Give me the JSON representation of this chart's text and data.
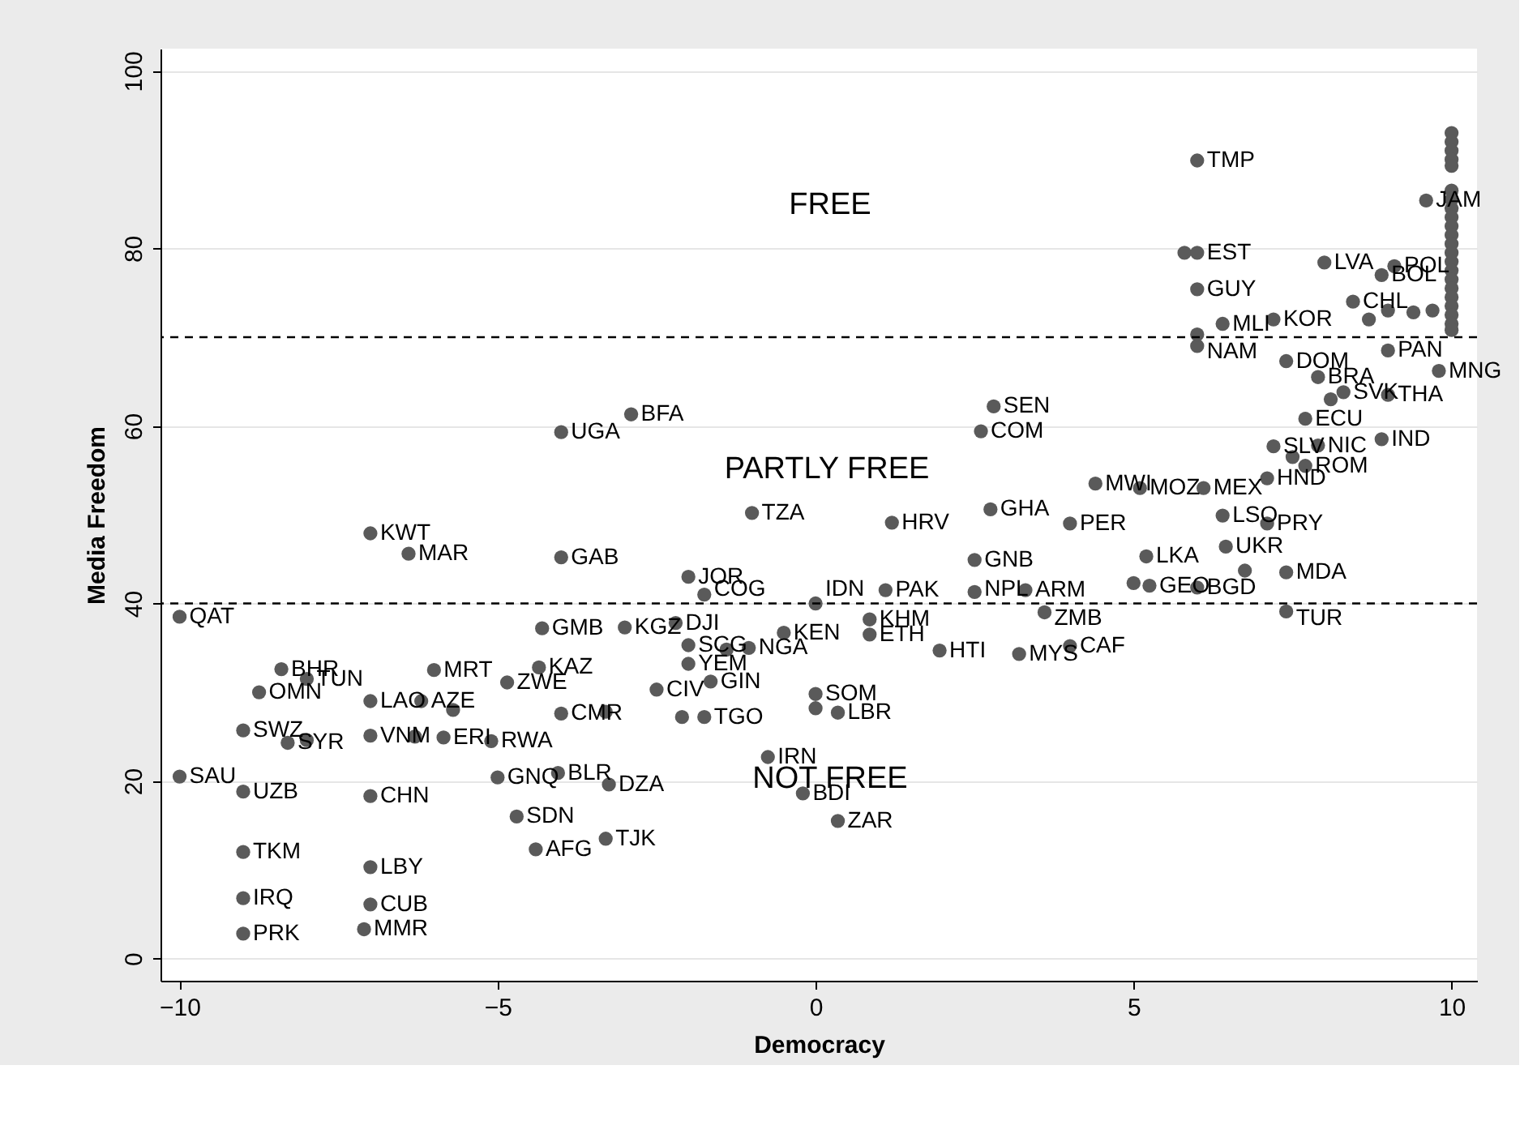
{
  "chart_data": {
    "type": "scatter",
    "xlabel": "Democracy",
    "ylabel": "Media Freedom",
    "xlim": [
      -10.3,
      10.4
    ],
    "ylim": [
      -2.5,
      102.5
    ],
    "xticks": [
      -10,
      -5,
      0,
      5,
      10
    ],
    "yticks": [
      0,
      20,
      40,
      60,
      80,
      100
    ],
    "grid": "y",
    "marker": "circle",
    "series": [
      {
        "color": "#5a5a5a",
        "x": [
          -10,
          -10,
          -7,
          -6.4,
          -4,
          -4,
          -2.9,
          -1,
          1.2,
          2.75,
          2.8,
          2.6,
          4,
          2.5,
          -2,
          -1.75,
          -2.2,
          -3,
          -4.3,
          -2,
          -2,
          -1.05,
          -1.4,
          -0.5,
          -1.65,
          -2.5,
          0,
          1.1,
          0.85,
          0.85,
          1.95,
          3.2,
          2.5,
          3.3,
          3.6,
          4,
          0,
          0,
          0.35,
          -0.75,
          -0.2,
          0.35,
          -3.3,
          -4.4,
          -3.25,
          -4.05,
          -5,
          -4,
          -3.3,
          -1.75,
          -2.1,
          -4.7,
          -7,
          -7,
          -7,
          -7.1,
          -9,
          -9,
          -9,
          -9,
          -9,
          -8.3,
          -8,
          -7,
          -6.3,
          -5.85,
          -5.7,
          -6.2,
          -5.1,
          -7,
          -6,
          -4.35,
          -4.85,
          -8.4,
          -8.75,
          -8,
          6,
          5.8,
          6,
          6,
          8,
          9.6,
          7.2,
          6.4,
          6,
          6,
          9,
          9.8,
          7.4,
          7.9,
          8.3,
          8.1,
          9,
          7.7,
          8.9,
          7.2,
          7.9,
          7.7,
          7.5,
          4.4,
          7.1,
          5.1,
          6.1,
          6.4,
          7.1,
          6.45,
          5.2,
          5,
          5.25,
          6,
          6.75,
          7.4,
          7.4,
          8.9,
          9.1,
          8.45,
          8.7,
          9,
          9.4,
          9.7,
          10,
          10,
          10,
          10,
          10,
          10,
          10,
          10,
          10,
          10,
          10,
          10,
          10,
          10,
          10,
          10,
          10,
          10,
          10,
          10,
          10,
          10
        ],
        "values": [
          38.5,
          20.5,
          47.9,
          45.6,
          45.2,
          59.3,
          61.3,
          50.2,
          49.1,
          50.6,
          62.2,
          59.4,
          49,
          44.9,
          43,
          41.0,
          37.8,
          37.3,
          37.2,
          35.3,
          33.2,
          35,
          34.8,
          36.7,
          31.2,
          30.3,
          40,
          41.5,
          38.2,
          36.5,
          34.7,
          34.3,
          41.3,
          41.5,
          39,
          35.2,
          29.8,
          28.2,
          27.7,
          22.7,
          18.6,
          15.5,
          13.5,
          12.3,
          19.6,
          20.9,
          20.4,
          27.6,
          27.8,
          27.2,
          27.2,
          16,
          18.3,
          10.3,
          6.1,
          3.3,
          6.8,
          2.8,
          12,
          18.8,
          25.7,
          24.3,
          24.6,
          25.1,
          25,
          24.9,
          28,
          29.0,
          24.5,
          29,
          32.5,
          32.8,
          31.1,
          32.6,
          30,
          31.5,
          89.9,
          79.5,
          79.5,
          75.4,
          78.4,
          85.4,
          72,
          71.5,
          69,
          70.3,
          68.5,
          66.2,
          67.3,
          65.5,
          63.8,
          63,
          63.5,
          60.8,
          58.5,
          57.7,
          57.8,
          55.5,
          56.5,
          53.5,
          54.1,
          53,
          53,
          49.9,
          49,
          46.4,
          45.3,
          42.3,
          42,
          41.8,
          43.7,
          43.5,
          39.1,
          77,
          78,
          74,
          72,
          73,
          72.8,
          73,
          93,
          92,
          91,
          90,
          89.3,
          86.5,
          85.5,
          84.5,
          83.5,
          82.5,
          81.5,
          80.5,
          79.5,
          78.5,
          77.5,
          76.5,
          75.5,
          74.5,
          73.5,
          72.5,
          71.5,
          70.8
        ],
        "value_labels": [
          "QAT",
          "SAU",
          "KWT",
          "MAR",
          "GAB",
          "UGA",
          "BFA",
          "TZA",
          "HRV",
          "GHA",
          "SEN",
          "COM",
          "PER",
          "GNB",
          "JOR",
          "COG",
          "DJI",
          "KGZ",
          "GMB",
          "SCG",
          "YEM",
          "NGA",
          null,
          "KEN",
          "GIN",
          "CIV",
          "IDN",
          "PAK",
          "KHM",
          "ETH",
          "HTI",
          "MYS",
          "NPL",
          "ARM",
          "ZMB",
          "CAF",
          "SOM",
          null,
          "LBR",
          "IRN",
          "BDI",
          "ZAR",
          "TJK",
          "AFG",
          "DZA",
          "BLR",
          "GNQ",
          "CMR",
          null,
          "TGO",
          null,
          "SDN",
          "CHN",
          "LBY",
          "CUB",
          "MMR",
          "IRQ",
          "PRK",
          "TKM",
          "UZB",
          "SWZ",
          "SYR",
          null,
          "VNM",
          null,
          "ERI",
          null,
          "AZE",
          "RWA",
          "LAO",
          "MRT",
          "KAZ",
          "ZWE",
          "BHR",
          "OMN",
          "TUN",
          "TMP",
          null,
          "EST",
          "GUY",
          "LVA",
          "JAM",
          "KOR",
          "MLI",
          "NAM",
          null,
          "PAN",
          "MNG",
          "DOM",
          "BRA",
          "SVK",
          null,
          "THA",
          "ECU",
          "IND",
          "SLV",
          "NIC",
          "ROM",
          null,
          "MWI",
          "HND",
          "MOZ",
          "MEX",
          "LSO",
          "PRY",
          "UKR",
          "LKA",
          null,
          "GEO",
          "BGD",
          null,
          "MDA",
          "TUR",
          "BOL",
          "POL",
          "CHL",
          null,
          null,
          null,
          null,
          null,
          null,
          null,
          null,
          null,
          null,
          null,
          null,
          null,
          null,
          null,
          null,
          null,
          null,
          null,
          null,
          null,
          null,
          null,
          null,
          null,
          null
        ]
      }
    ],
    "ref_lines": [
      {
        "axis": "y",
        "value": 70,
        "line_style": "dashed",
        "color": "#000000"
      },
      {
        "axis": "y",
        "value": 40,
        "line_style": "dashed",
        "color": "#000000"
      }
    ],
    "annotations": [
      "FREE",
      "PARTLY FREE",
      "NOT FREE"
    ]
  }
}
